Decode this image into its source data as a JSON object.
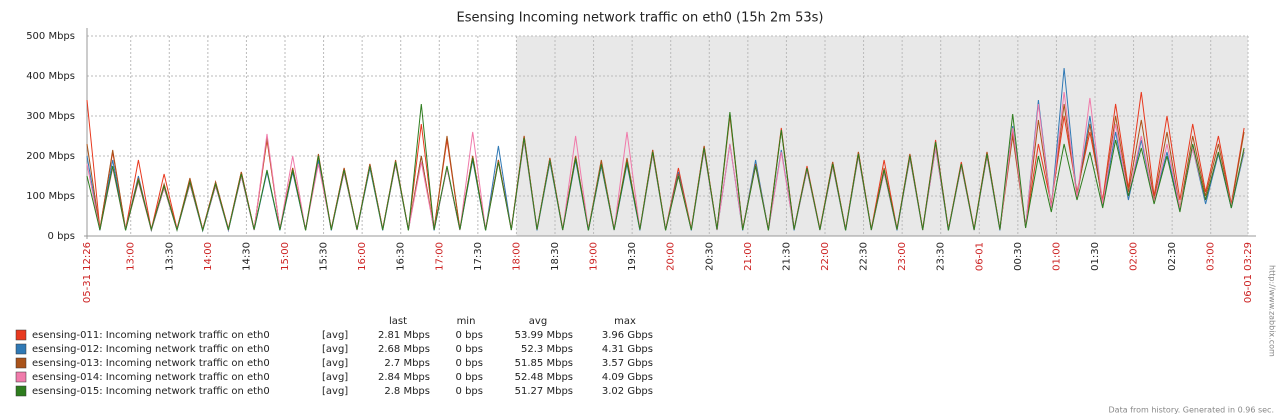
{
  "chart_data": {
    "type": "line",
    "title": "Esensing Incoming network traffic on eth0 (15h 2m 53s)",
    "x": [
      "05-31 12:26",
      "05-31 12:36",
      "05-31 12:46",
      "05-31 12:56",
      "05-31 13:06",
      "05-31 13:16",
      "05-31 13:26",
      "05-31 13:36",
      "05-31 13:46",
      "05-31 13:56",
      "05-31 14:06",
      "05-31 14:16",
      "05-31 14:26",
      "05-31 14:36",
      "05-31 14:46",
      "05-31 14:56",
      "05-31 15:06",
      "05-31 15:16",
      "05-31 15:26",
      "05-31 15:36",
      "05-31 15:46",
      "05-31 15:56",
      "05-31 16:06",
      "05-31 16:16",
      "05-31 16:26",
      "05-31 16:36",
      "05-31 16:46",
      "05-31 16:56",
      "05-31 17:06",
      "05-31 17:16",
      "05-31 17:26",
      "05-31 17:36",
      "05-31 17:46",
      "05-31 17:56",
      "05-31 18:06",
      "05-31 18:16",
      "05-31 18:26",
      "05-31 18:36",
      "05-31 18:46",
      "05-31 18:56",
      "05-31 19:06",
      "05-31 19:16",
      "05-31 19:26",
      "05-31 19:36",
      "05-31 19:46",
      "05-31 19:56",
      "05-31 20:06",
      "05-31 20:16",
      "05-31 20:26",
      "05-31 20:36",
      "05-31 20:46",
      "05-31 20:56",
      "05-31 21:06",
      "05-31 21:16",
      "05-31 21:26",
      "05-31 21:36",
      "05-31 21:46",
      "05-31 21:56",
      "05-31 22:06",
      "05-31 22:16",
      "05-31 22:26",
      "05-31 22:36",
      "05-31 22:46",
      "05-31 22:56",
      "05-31 23:06",
      "05-31 23:16",
      "05-31 23:26",
      "05-31 23:36",
      "05-31 23:46",
      "05-31 23:56",
      "06-01 00:06",
      "06-01 00:16",
      "06-01 00:26",
      "06-01 00:36",
      "06-01 00:46",
      "06-01 00:56",
      "06-01 01:06",
      "06-01 01:16",
      "06-01 01:26",
      "06-01 01:36",
      "06-01 01:46",
      "06-01 01:56",
      "06-01 02:06",
      "06-01 02:16",
      "06-01 02:26",
      "06-01 02:36",
      "06-01 02:46",
      "06-01 02:56",
      "06-01 03:06",
      "06-01 03:16",
      "06-01 03:26"
    ],
    "xlim": [
      "05-31 12:26",
      "06-01 03:29"
    ],
    "xticks": [
      {
        "value": "05-31 12:26",
        "label": "05-31 12:26"
      },
      {
        "value": "05-31 13:00",
        "label": "13:00"
      },
      {
        "value": "05-31 13:30",
        "label": "13:30"
      },
      {
        "value": "05-31 14:00",
        "label": "14:00"
      },
      {
        "value": "05-31 14:30",
        "label": "14:30"
      },
      {
        "value": "05-31 15:00",
        "label": "15:00"
      },
      {
        "value": "05-31 15:30",
        "label": "15:30"
      },
      {
        "value": "05-31 16:00",
        "label": "16:00"
      },
      {
        "value": "05-31 16:30",
        "label": "16:30"
      },
      {
        "value": "05-31 17:00",
        "label": "17:00"
      },
      {
        "value": "05-31 17:30",
        "label": "17:30"
      },
      {
        "value": "05-31 18:00",
        "label": "18:00"
      },
      {
        "value": "05-31 18:30",
        "label": "18:30"
      },
      {
        "value": "05-31 19:00",
        "label": "19:00"
      },
      {
        "value": "05-31 19:30",
        "label": "19:30"
      },
      {
        "value": "05-31 20:00",
        "label": "20:00"
      },
      {
        "value": "05-31 20:30",
        "label": "20:30"
      },
      {
        "value": "05-31 21:00",
        "label": "21:00"
      },
      {
        "value": "05-31 21:30",
        "label": "21:30"
      },
      {
        "value": "05-31 22:00",
        "label": "22:00"
      },
      {
        "value": "05-31 22:30",
        "label": "22:30"
      },
      {
        "value": "05-31 23:00",
        "label": "23:00"
      },
      {
        "value": "05-31 23:30",
        "label": "23:30"
      },
      {
        "value": "06-01 00:00",
        "label": "06-01"
      },
      {
        "value": "06-01 00:30",
        "label": "00:30"
      },
      {
        "value": "06-01 01:00",
        "label": "01:00"
      },
      {
        "value": "06-01 01:30",
        "label": "01:30"
      },
      {
        "value": "06-01 02:00",
        "label": "02:00"
      },
      {
        "value": "06-01 02:30",
        "label": "02:30"
      },
      {
        "value": "06-01 03:00",
        "label": "03:00"
      },
      {
        "value": "06-01 03:29",
        "label": "06-01 03:29"
      }
    ],
    "ylim": [
      0,
      500
    ],
    "yticks": [
      {
        "value": 0,
        "label": "0 bps"
      },
      {
        "value": 100,
        "label": "100 Mbps"
      },
      {
        "value": 200,
        "label": "200 Mbps"
      },
      {
        "value": 300,
        "label": "300 Mbps"
      },
      {
        "value": 400,
        "label": "400 Mbps"
      },
      {
        "value": 500,
        "label": "500 Mbps"
      }
    ],
    "grid": true,
    "shaded_from": "05-31 18:00",
    "stats_header": [
      "last",
      "min",
      "avg",
      "max"
    ],
    "series": [
      {
        "name": "esensing-011: Incoming network traffic on eth0",
        "color": "#e8391f",
        "stats": [
          "[avg]",
          "2.81 Mbps",
          "0 bps",
          "53.99 Mbps",
          "3.96 Gbps"
        ],
        "values": [
          340,
          18,
          210,
          17,
          190,
          16,
          155,
          18,
          140,
          17,
          135,
          18,
          160,
          17,
          240,
          18,
          170,
          16,
          190,
          18,
          170,
          17,
          180,
          18,
          185,
          16,
          280,
          18,
          240,
          17,
          200,
          16,
          190,
          18,
          250,
          17,
          195,
          18,
          200,
          16,
          185,
          18,
          190,
          17,
          215,
          16,
          170,
          18,
          225,
          17,
          305,
          18,
          180,
          16,
          270,
          17,
          175,
          18,
          185,
          16,
          210,
          17,
          190,
          18,
          205,
          17,
          240,
          16,
          185,
          18,
          210,
          17,
          260,
          25,
          230,
          80,
          300,
          110,
          260,
          90,
          330,
          120,
          360,
          100,
          300,
          90,
          280,
          110,
          250,
          80,
          270
        ]
      },
      {
        "name": "esensing-012: Incoming network traffic on eth0",
        "color": "#2f79b5",
        "stats": [
          "[avg]",
          "2.68 Mbps",
          "0 bps",
          "52.3 Mbps",
          "4.31 Gbps"
        ],
        "values": [
          200,
          14,
          190,
          15,
          150,
          14,
          120,
          15,
          130,
          13,
          125,
          14,
          150,
          15,
          160,
          14,
          160,
          15,
          190,
          14,
          160,
          15,
          170,
          14,
          180,
          15,
          200,
          14,
          170,
          15,
          190,
          14,
          225,
          15,
          240,
          14,
          185,
          15,
          190,
          14,
          175,
          15,
          180,
          14,
          205,
          15,
          160,
          14,
          215,
          15,
          230,
          14,
          190,
          15,
          215,
          14,
          165,
          15,
          175,
          14,
          200,
          15,
          160,
          14,
          195,
          15,
          220,
          14,
          175,
          15,
          200,
          14,
          275,
          22,
          340,
          70,
          420,
          95,
          300,
          75,
          260,
          90,
          240,
          85,
          210,
          65,
          220,
          80,
          205,
          70,
          210
        ]
      },
      {
        "name": "esensing-013: Incoming network traffic on eth0",
        "color": "#a9531a",
        "stats": [
          "[avg]",
          "2.7 Mbps",
          "0 bps",
          "51.85 Mbps",
          "3.57 Gbps"
        ],
        "values": [
          230,
          16,
          215,
          17,
          145,
          16,
          130,
          17,
          145,
          16,
          135,
          17,
          160,
          16,
          245,
          17,
          170,
          16,
          205,
          17,
          170,
          16,
          180,
          17,
          190,
          16,
          200,
          17,
          250,
          16,
          200,
          17,
          190,
          16,
          250,
          17,
          195,
          16,
          200,
          17,
          190,
          16,
          195,
          17,
          215,
          16,
          155,
          17,
          225,
          16,
          300,
          17,
          180,
          16,
          265,
          17,
          170,
          16,
          185,
          17,
          210,
          16,
          170,
          17,
          205,
          16,
          235,
          17,
          180,
          16,
          210,
          17,
          250,
          22,
          290,
          75,
          330,
          100,
          280,
          80,
          300,
          110,
          290,
          90,
          260,
          70,
          250,
          100,
          230,
          75,
          260
        ]
      },
      {
        "name": "esensing-014: Incoming network traffic on eth0",
        "color": "#f07bab",
        "stats": [
          "[avg]",
          "2.84 Mbps",
          "0 bps",
          "52.48 Mbps",
          "4.09 Gbps"
        ],
        "values": [
          180,
          15,
          170,
          16,
          135,
          15,
          120,
          16,
          130,
          15,
          125,
          16,
          150,
          15,
          255,
          16,
          200,
          15,
          180,
          16,
          160,
          15,
          175,
          16,
          180,
          15,
          185,
          16,
          170,
          15,
          260,
          16,
          185,
          15,
          240,
          16,
          190,
          15,
          250,
          16,
          180,
          15,
          260,
          16,
          205,
          15,
          150,
          16,
          215,
          15,
          230,
          16,
          175,
          15,
          210,
          16,
          165,
          15,
          175,
          16,
          200,
          15,
          160,
          16,
          195,
          15,
          220,
          16,
          175,
          15,
          200,
          16,
          270,
          22,
          330,
          70,
          360,
          95,
          345,
          80,
          280,
          100,
          250,
          85,
          230,
          70,
          220,
          90,
          210,
          75,
          215
        ]
      },
      {
        "name": "esensing-015: Incoming network traffic on eth0",
        "color": "#2e7d1e",
        "stats": [
          "[avg]",
          "2.8 Mbps",
          "0 bps",
          "51.27 Mbps",
          "3.02 Gbps"
        ],
        "values": [
          150,
          15,
          175,
          14,
          140,
          16,
          125,
          15,
          135,
          14,
          130,
          15,
          155,
          16,
          165,
          15,
          165,
          14,
          200,
          15,
          165,
          16,
          175,
          15,
          185,
          14,
          330,
          15,
          175,
          16,
          195,
          14,
          185,
          15,
          245,
          16,
          190,
          15,
          195,
          14,
          180,
          15,
          185,
          16,
          210,
          14,
          150,
          15,
          220,
          16,
          310,
          15,
          175,
          14,
          265,
          16,
          170,
          15,
          180,
          14,
          205,
          15,
          165,
          16,
          200,
          15,
          235,
          14,
          180,
          15,
          205,
          16,
          305,
          20,
          200,
          60,
          230,
          90,
          210,
          70,
          240,
          100,
          220,
          80,
          200,
          60,
          230,
          90,
          210,
          70,
          220
        ]
      }
    ],
    "footer": "Data from history. Generated in 0.96 sec.",
    "side_text": "http://www.zabbix.com"
  }
}
